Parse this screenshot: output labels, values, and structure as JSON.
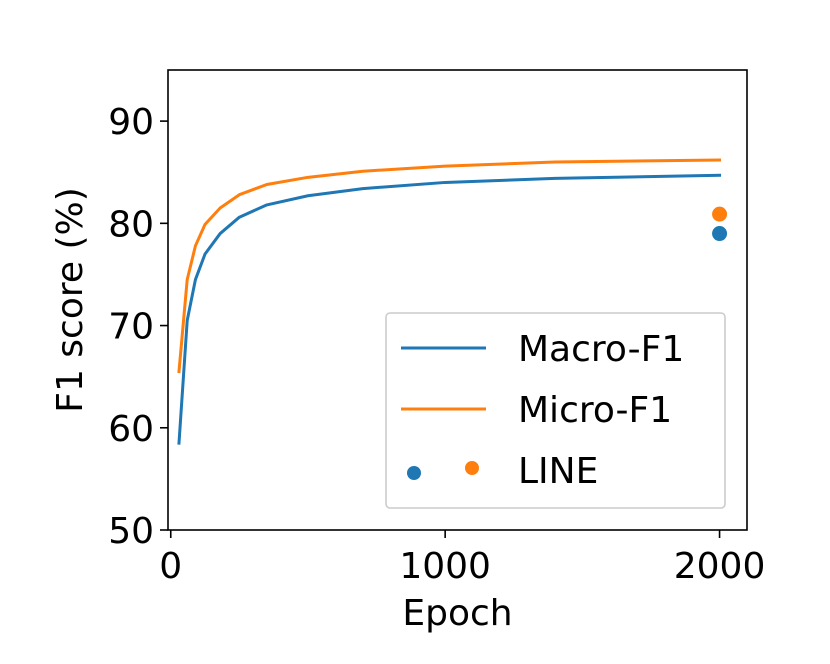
{
  "chart_data": {
    "type": "line",
    "xlabel": "Epoch",
    "ylabel": "F1 score (%)",
    "xlim": [
      -10,
      2100
    ],
    "ylim": [
      50,
      95
    ],
    "xticks": [
      0,
      1000,
      2000
    ],
    "yticks": [
      50,
      60,
      70,
      80,
      90
    ],
    "x_tick_labels": [
      "0",
      "1000",
      "2000"
    ],
    "y_tick_labels": [
      "50",
      "60",
      "70",
      "80",
      "90"
    ],
    "grid": false,
    "legend_position": "lower-right",
    "series": [
      {
        "name": "Macro-F1",
        "color": "#1f77b4",
        "x": [
          30,
          60,
          90,
          125,
          180,
          250,
          350,
          500,
          700,
          1000,
          1400,
          2000
        ],
        "values": [
          58.5,
          70.5,
          74.5,
          77.0,
          79.0,
          80.6,
          81.8,
          82.7,
          83.4,
          84.0,
          84.4,
          84.7
        ]
      },
      {
        "name": "Micro-F1",
        "color": "#ff7f0e",
        "x": [
          30,
          60,
          90,
          125,
          180,
          250,
          350,
          500,
          700,
          1000,
          1400,
          2000
        ],
        "values": [
          65.5,
          74.5,
          77.8,
          79.9,
          81.5,
          82.8,
          83.8,
          84.5,
          85.1,
          85.6,
          86.0,
          86.2
        ]
      }
    ],
    "points": [
      {
        "name": "LINE",
        "label": "Macro-F1",
        "x": 2000,
        "y": 79.0,
        "color": "#1f77b4"
      },
      {
        "name": "LINE",
        "label": "Micro-F1",
        "x": 2000,
        "y": 80.9,
        "color": "#ff7f0e"
      }
    ],
    "legend": [
      {
        "label": "Macro-F1",
        "kind": "line",
        "color": "#1f77b4"
      },
      {
        "label": "Micro-F1",
        "kind": "line",
        "color": "#ff7f0e"
      },
      {
        "label": "LINE",
        "kind": "markers",
        "colors": [
          "#1f77b4",
          "#ff7f0e"
        ]
      }
    ]
  }
}
